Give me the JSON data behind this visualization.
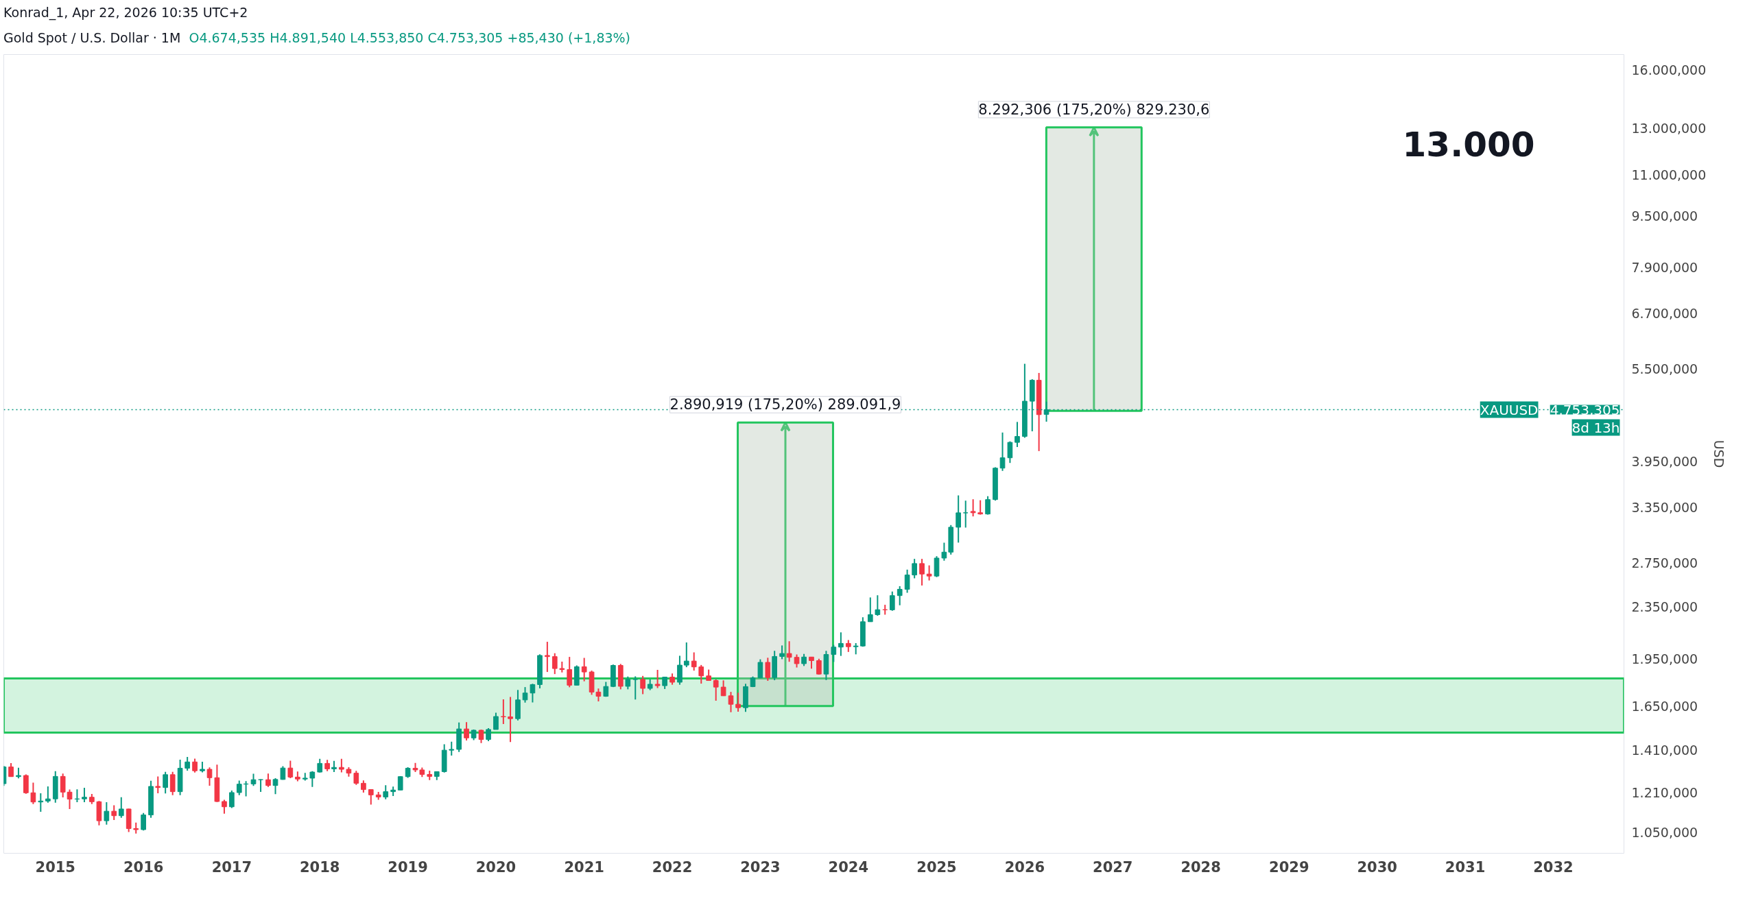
{
  "chart_data": {
    "type": "candlestick",
    "title": "Gold Spot / U.S. Dollar · 1M",
    "subtitle": "O4.674,535 H4.891,540 L4.553,850 C4.753,305 +85,430 (+1,83%)",
    "ylabel": "USD",
    "log": true,
    "grid": false,
    "x": [
      "2014-06",
      "2014-07",
      "2014-08",
      "2014-09",
      "2014-10",
      "2014-11",
      "2014-12",
      "2015-01",
      "2015-02",
      "2015-03",
      "2015-04",
      "2015-05",
      "2015-06",
      "2015-07",
      "2015-08",
      "2015-09",
      "2015-10",
      "2015-11",
      "2015-12",
      "2016-01",
      "2016-02",
      "2016-03",
      "2016-04",
      "2016-05",
      "2016-06",
      "2016-07",
      "2016-08",
      "2016-09",
      "2016-10",
      "2016-11",
      "2016-12",
      "2017-01",
      "2017-02",
      "2017-03",
      "2017-04",
      "2017-05",
      "2017-06",
      "2017-07",
      "2017-08",
      "2017-09",
      "2017-10",
      "2017-11",
      "2017-12",
      "2018-01",
      "2018-02",
      "2018-03",
      "2018-04",
      "2018-05",
      "2018-06",
      "2018-07",
      "2018-08",
      "2018-09",
      "2018-10",
      "2018-11",
      "2018-12",
      "2019-01",
      "2019-02",
      "2019-03",
      "2019-04",
      "2019-05",
      "2019-06",
      "2019-07",
      "2019-08",
      "2019-09",
      "2019-10",
      "2019-11",
      "2019-12",
      "2020-01",
      "2020-02",
      "2020-03",
      "2020-04",
      "2020-05",
      "2020-06",
      "2020-07",
      "2020-08",
      "2020-09",
      "2020-10",
      "2020-11",
      "2020-12",
      "2021-01",
      "2021-02",
      "2021-03",
      "2021-04",
      "2021-05",
      "2021-06",
      "2021-07",
      "2021-08",
      "2021-09",
      "2021-10",
      "2021-11",
      "2021-12",
      "2022-01",
      "2022-02",
      "2022-03",
      "2022-04",
      "2022-05",
      "2022-06",
      "2022-07",
      "2022-08",
      "2022-09",
      "2022-10",
      "2022-11",
      "2022-12",
      "2023-01",
      "2023-02",
      "2023-03",
      "2023-04",
      "2023-05",
      "2023-06",
      "2023-07",
      "2023-08",
      "2023-09",
      "2023-10",
      "2023-11",
      "2023-12",
      "2024-01",
      "2024-02",
      "2024-03",
      "2024-04",
      "2024-05",
      "2024-06",
      "2024-07",
      "2024-08",
      "2024-09",
      "2024-10",
      "2024-11",
      "2024-12",
      "2025-01",
      "2025-02",
      "2025-03",
      "2025-04",
      "2025-05",
      "2025-06",
      "2025-07",
      "2025-08",
      "2025-09",
      "2025-10",
      "2025-11",
      "2025-12",
      "2026-01",
      "2026-02",
      "2026-03",
      "2026-04"
    ],
    "ohlc": [
      [
        1250,
        1332,
        1240,
        1327
      ],
      [
        1327,
        1345,
        1281,
        1282
      ],
      [
        1282,
        1323,
        1274,
        1287
      ],
      [
        1287,
        1292,
        1206,
        1210
      ],
      [
        1210,
        1255,
        1162,
        1171
      ],
      [
        1171,
        1208,
        1131,
        1175
      ],
      [
        1175,
        1238,
        1168,
        1184
      ],
      [
        1184,
        1307,
        1168,
        1283
      ],
      [
        1283,
        1296,
        1190,
        1213
      ],
      [
        1213,
        1224,
        1142,
        1183
      ],
      [
        1183,
        1225,
        1170,
        1184
      ],
      [
        1184,
        1232,
        1170,
        1191
      ],
      [
        1191,
        1205,
        1162,
        1172
      ],
      [
        1172,
        1175,
        1077,
        1095
      ],
      [
        1095,
        1170,
        1080,
        1133
      ],
      [
        1133,
        1157,
        1098,
        1115
      ],
      [
        1115,
        1191,
        1107,
        1142
      ],
      [
        1142,
        1143,
        1052,
        1065
      ],
      [
        1065,
        1088,
        1046,
        1061
      ],
      [
        1061,
        1126,
        1058,
        1118
      ],
      [
        1118,
        1263,
        1107,
        1238
      ],
      [
        1238,
        1283,
        1208,
        1233
      ],
      [
        1233,
        1304,
        1207,
        1291
      ],
      [
        1291,
        1304,
        1200,
        1215
      ],
      [
        1215,
        1362,
        1200,
        1321
      ],
      [
        1321,
        1375,
        1310,
        1351
      ],
      [
        1351,
        1367,
        1301,
        1309
      ],
      [
        1309,
        1352,
        1302,
        1316
      ],
      [
        1316,
        1325,
        1241,
        1277
      ],
      [
        1277,
        1338,
        1171,
        1173
      ],
      [
        1173,
        1180,
        1123,
        1151
      ],
      [
        1151,
        1220,
        1146,
        1211
      ],
      [
        1211,
        1264,
        1200,
        1248
      ],
      [
        1248,
        1262,
        1195,
        1249
      ],
      [
        1249,
        1295,
        1240,
        1268
      ],
      [
        1268,
        1270,
        1214,
        1268
      ],
      [
        1268,
        1296,
        1236,
        1242
      ],
      [
        1242,
        1275,
        1204,
        1269
      ],
      [
        1269,
        1331,
        1268,
        1322
      ],
      [
        1322,
        1357,
        1275,
        1280
      ],
      [
        1280,
        1306,
        1261,
        1271
      ],
      [
        1271,
        1299,
        1264,
        1275
      ],
      [
        1275,
        1307,
        1236,
        1303
      ],
      [
        1303,
        1366,
        1301,
        1344
      ],
      [
        1344,
        1361,
        1307,
        1318
      ],
      [
        1318,
        1356,
        1303,
        1325
      ],
      [
        1325,
        1366,
        1302,
        1316
      ],
      [
        1316,
        1326,
        1282,
        1298
      ],
      [
        1298,
        1309,
        1245,
        1252
      ],
      [
        1252,
        1265,
        1211,
        1224
      ],
      [
        1224,
        1225,
        1160,
        1201
      ],
      [
        1201,
        1214,
        1180,
        1192
      ],
      [
        1192,
        1243,
        1182,
        1215
      ],
      [
        1215,
        1237,
        1196,
        1222
      ],
      [
        1222,
        1284,
        1221,
        1282
      ],
      [
        1282,
        1326,
        1276,
        1321
      ],
      [
        1321,
        1346,
        1303,
        1313
      ],
      [
        1313,
        1324,
        1280,
        1292
      ],
      [
        1292,
        1310,
        1266,
        1283
      ],
      [
        1283,
        1306,
        1266,
        1305
      ],
      [
        1305,
        1439,
        1301,
        1409
      ],
      [
        1409,
        1452,
        1382,
        1413
      ],
      [
        1413,
        1555,
        1400,
        1520
      ],
      [
        1520,
        1557,
        1459,
        1472
      ],
      [
        1472,
        1517,
        1460,
        1513
      ],
      [
        1513,
        1516,
        1445,
        1464
      ],
      [
        1464,
        1524,
        1455,
        1517
      ],
      [
        1517,
        1611,
        1517,
        1589
      ],
      [
        1589,
        1689,
        1547,
        1587
      ],
      [
        1587,
        1704,
        1451,
        1577
      ],
      [
        1577,
        1747,
        1567,
        1686
      ],
      [
        1686,
        1765,
        1670,
        1728
      ],
      [
        1728,
        1786,
        1671,
        1781
      ],
      [
        1781,
        1984,
        1757,
        1976
      ],
      [
        1976,
        2075,
        1863,
        1968
      ],
      [
        1968,
        1992,
        1849,
        1886
      ],
      [
        1886,
        1933,
        1860,
        1879
      ],
      [
        1879,
        1966,
        1764,
        1777
      ],
      [
        1777,
        1907,
        1776,
        1898
      ],
      [
        1898,
        1959,
        1802,
        1863
      ],
      [
        1863,
        1872,
        1717,
        1734
      ],
      [
        1734,
        1756,
        1677,
        1708
      ],
      [
        1708,
        1798,
        1705,
        1769
      ],
      [
        1769,
        1913,
        1765,
        1907
      ],
      [
        1907,
        1917,
        1751,
        1770
      ],
      [
        1770,
        1833,
        1751,
        1814
      ],
      [
        1814,
        1834,
        1688,
        1814
      ],
      [
        1814,
        1837,
        1721,
        1757
      ],
      [
        1757,
        1814,
        1746,
        1783
      ],
      [
        1783,
        1877,
        1759,
        1774
      ],
      [
        1774,
        1831,
        1753,
        1829
      ],
      [
        1829,
        1853,
        1780,
        1796
      ],
      [
        1796,
        1974,
        1780,
        1909
      ],
      [
        1909,
        2070,
        1895,
        1937
      ],
      [
        1937,
        1998,
        1872,
        1897
      ],
      [
        1897,
        1910,
        1787,
        1837
      ],
      [
        1837,
        1879,
        1805,
        1807
      ],
      [
        1807,
        1814,
        1681,
        1765
      ],
      [
        1765,
        1808,
        1710,
        1711
      ],
      [
        1711,
        1735,
        1614,
        1660
      ],
      [
        1660,
        1730,
        1617,
        1640
      ],
      [
        1640,
        1786,
        1616,
        1768
      ],
      [
        1768,
        1833,
        1765,
        1824
      ],
      [
        1824,
        1949,
        1822,
        1928
      ],
      [
        1928,
        1960,
        1805,
        1826
      ],
      [
        1826,
        2009,
        1809,
        1969
      ],
      [
        1969,
        2048,
        1950,
        1990
      ],
      [
        1990,
        2079,
        1932,
        1963
      ],
      [
        1963,
        1983,
        1893,
        1919
      ],
      [
        1919,
        1987,
        1903,
        1965
      ],
      [
        1965,
        1966,
        1885,
        1940
      ],
      [
        1940,
        1953,
        1846,
        1849
      ],
      [
        1849,
        2009,
        1810,
        1983
      ],
      [
        1983,
        2052,
        1931,
        2036
      ],
      [
        2036,
        2146,
        1973,
        2063
      ],
      [
        2063,
        2088,
        2001,
        2039
      ],
      [
        2039,
        2065,
        1984,
        2044
      ],
      [
        2044,
        2265,
        2039,
        2229
      ],
      [
        2229,
        2431,
        2228,
        2286
      ],
      [
        2286,
        2450,
        2277,
        2327
      ],
      [
        2327,
        2368,
        2286,
        2326
      ],
      [
        2326,
        2483,
        2318,
        2447
      ],
      [
        2447,
        2531,
        2364,
        2503
      ],
      [
        2503,
        2685,
        2472,
        2634
      ],
      [
        2634,
        2790,
        2603,
        2744
      ],
      [
        2744,
        2790,
        2537,
        2643
      ],
      [
        2643,
        2726,
        2583,
        2624
      ],
      [
        2624,
        2817,
        2614,
        2798
      ],
      [
        2798,
        2956,
        2772,
        2858
      ],
      [
        2858,
        3148,
        2833,
        3124
      ],
      [
        3124,
        3500,
        2957,
        3289
      ],
      [
        3289,
        3435,
        3120,
        3289
      ],
      [
        3305,
        3452,
        3247,
        3290
      ],
      [
        3290,
        3440,
        3268,
        3275
      ],
      [
        3275,
        3490,
        3268,
        3448
      ],
      [
        3448,
        3870,
        3436,
        3858
      ],
      [
        3858,
        4381,
        3820,
        4003
      ],
      [
        4003,
        4245,
        3930,
        4230
      ],
      [
        4230,
        4550,
        4160,
        4320
      ],
      [
        4320,
        5600,
        4300,
        4900
      ],
      [
        4900,
        5300,
        4400,
        5280
      ],
      [
        5280,
        5420,
        4100,
        4670
      ],
      [
        4674.535,
        4891.54,
        4553.85,
        4753.305
      ]
    ],
    "colors": [
      "#089981",
      "#f23645",
      "#089981",
      "#f23645",
      "#f23645",
      "#089981",
      "#089981",
      "#089981",
      "#f23645",
      "#f23645",
      "#089981",
      "#089981",
      "#f23645",
      "#f23645",
      "#089981",
      "#f23645",
      "#089981",
      "#f23645",
      "#f23645",
      "#089981",
      "#089981",
      "#f23645",
      "#089981",
      "#f23645",
      "#089981",
      "#089981",
      "#f23645",
      "#089981",
      "#f23645",
      "#f23645",
      "#f23645",
      "#089981",
      "#089981",
      "#089981",
      "#089981",
      "#089981",
      "#f23645",
      "#089981",
      "#089981",
      "#f23645",
      "#f23645",
      "#089981",
      "#089981",
      "#089981",
      "#f23645",
      "#089981",
      "#f23645",
      "#f23645",
      "#f23645",
      "#f23645",
      "#f23645",
      "#f23645",
      "#089981",
      "#089981",
      "#089981",
      "#089981",
      "#f23645",
      "#f23645",
      "#f23645",
      "#089981",
      "#089981",
      "#089981",
      "#089981",
      "#f23645",
      "#089981",
      "#f23645",
      "#089981",
      "#089981",
      "#f23645",
      "#f23645",
      "#089981",
      "#089981",
      "#089981",
      "#089981",
      "#f23645",
      "#f23645",
      "#f23645",
      "#f23645",
      "#089981",
      "#f23645",
      "#f23645",
      "#f23645",
      "#089981",
      "#089981",
      "#f23645",
      "#089981",
      "#089981",
      "#f23645",
      "#089981",
      "#f23645",
      "#089981",
      "#f23645",
      "#089981",
      "#089981",
      "#f23645",
      "#f23645",
      "#f23645",
      "#f23645",
      "#f23645",
      "#f23645",
      "#f23645",
      "#089981",
      "#089981",
      "#089981",
      "#f23645",
      "#089981",
      "#089981",
      "#f23645",
      "#f23645",
      "#089981",
      "#f23645",
      "#f23645",
      "#089981",
      "#089981",
      "#089981",
      "#f23645",
      "#089981",
      "#089981",
      "#089981",
      "#089981",
      "#f23645",
      "#089981",
      "#089981",
      "#089981",
      "#089981",
      "#f23645",
      "#f23645",
      "#089981",
      "#089981",
      "#089981",
      "#089981",
      "#089981",
      "#f23645",
      "#f23645",
      "#089981",
      "#089981",
      "#089981",
      "#089981",
      "#089981",
      "#089981",
      "#089981",
      "#f23645",
      "#089981"
    ],
    "series": [
      {
        "type": "bar",
        "x": [
          "2023-04-15",
          "2026-10-15"
        ],
        "base": [
          1650,
          4733
        ],
        "values": [
          2891,
          8292
        ],
        "color": "#b0bfae"
      }
    ],
    "xlim": [
      "2014-06-01",
      "2032-10-20"
    ],
    "xticks": [
      {
        "value": "2015-01",
        "label": "2015"
      },
      {
        "value": "2016-01",
        "label": "2016"
      },
      {
        "value": "2017-01",
        "label": "2017"
      },
      {
        "value": "2018-01",
        "label": "2018"
      },
      {
        "value": "2019-01",
        "label": "2019"
      },
      {
        "value": "2020-01",
        "label": "2020"
      },
      {
        "value": "2021-01",
        "label": "2021"
      },
      {
        "value": "2022-01",
        "label": "2022"
      },
      {
        "value": "2023-01",
        "label": "2023"
      },
      {
        "value": "2024-01",
        "label": "2024"
      },
      {
        "value": "2025-01",
        "label": "2025"
      },
      {
        "value": "2026-01",
        "label": "2026"
      },
      {
        "value": "2027-01",
        "label": "2027"
      },
      {
        "value": "2028-01",
        "label": "2028"
      },
      {
        "value": "2029-01",
        "label": "2029"
      },
      {
        "value": "2030-01",
        "label": "2030"
      },
      {
        "value": "2031-01",
        "label": "2031"
      },
      {
        "value": "2032-01",
        "label": "2032"
      }
    ],
    "ylim": [
      975,
      16900
    ],
    "yticks": [
      {
        "value": 1050,
        "label": "1.050,000"
      },
      {
        "value": 1210,
        "label": "1.210,000"
      },
      {
        "value": 1410,
        "label": "1.410,000"
      },
      {
        "value": 1650,
        "label": "1.650,000"
      },
      {
        "value": 1950,
        "label": "1.950,000"
      },
      {
        "value": 2350,
        "label": "2.350,000"
      },
      {
        "value": 2750,
        "label": "2.750,000"
      },
      {
        "value": 3350,
        "label": "3.350,000"
      },
      {
        "value": 3950,
        "label": "3.950,000"
      },
      {
        "value": 5500,
        "label": "5.500,000"
      },
      {
        "value": 6700,
        "label": "6.700,000"
      },
      {
        "value": 7900,
        "label": "7.900,000"
      },
      {
        "value": 9500,
        "label": "9.500,000"
      },
      {
        "value": 11000,
        "label": "11.000,000"
      },
      {
        "value": 13000,
        "label": "13.000,000"
      },
      {
        "value": 16000,
        "label": "16.000,000"
      }
    ],
    "bands": [
      {
        "axis": "y",
        "from": 1500,
        "to": 1820,
        "color": "#22c55e"
      }
    ],
    "ref_lines": [
      {
        "axis": "y",
        "value": 4753.305,
        "label": "XAUUSD",
        "color": "#089981",
        "line_style": "dotted"
      }
    ],
    "annotations": [
      "Konrad_1, Apr 22, 2026 10:35 UTC+2",
      "13.000",
      "8d 13h",
      {
        "text": "4.753,305",
        "x": "2032-10-20",
        "y": 4753.305
      },
      {
        "text": "2.890,919 (175,20%) 289.091,9",
        "x": "2023-04-15",
        "y": 4541
      },
      {
        "text": "8.292,306 (175,20%) 829.230,6",
        "x": "2026-10-15",
        "y": 13025
      }
    ]
  }
}
